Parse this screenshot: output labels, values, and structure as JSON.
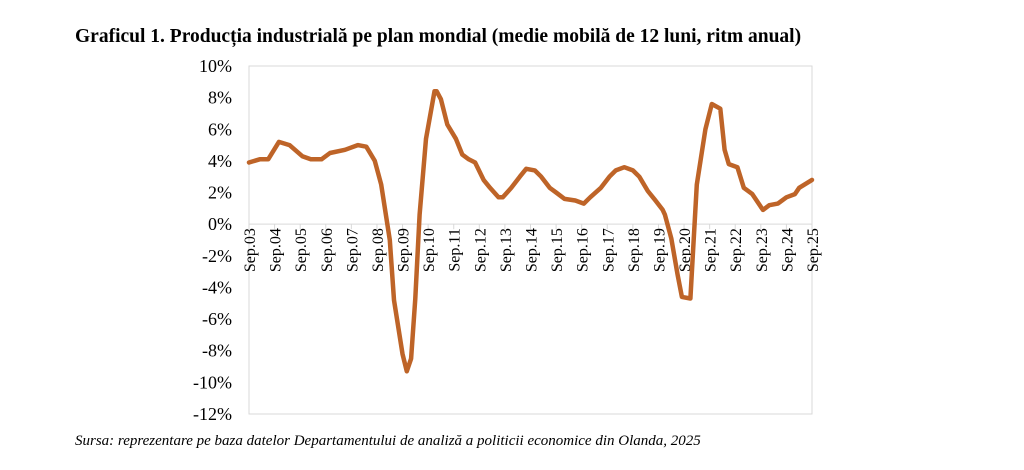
{
  "chart_data": {
    "type": "line",
    "title": "Graficul 1. Producția industrială pe plan mondial (medie mobilă de 12 luni, ritm anual)",
    "source": "Sursa: reprezentare pe baza datelor Departamentului de analiză a politicii economice din Olanda, 2025",
    "xlabel": "",
    "ylabel": "",
    "ylim": [
      -12,
      10
    ],
    "yticks": [
      "10%",
      "8%",
      "6%",
      "4%",
      "2%",
      "0%",
      "-2%",
      "-4%",
      "-6%",
      "-8%",
      "-10%",
      "-12%"
    ],
    "xticks": [
      "Sep.03",
      "Sep.04",
      "Sep.05",
      "Sep.06",
      "Sep.07",
      "Sep.08",
      "Sep.09",
      "Sep.10",
      "Sep.11",
      "Sep.12",
      "Sep.13",
      "Sep.14",
      "Sep.15",
      "Sep.16",
      "Sep.17",
      "Sep.18",
      "Sep.19",
      "Sep.20",
      "Sep.21",
      "Sep.22",
      "Sep.23",
      "Sep.24",
      "Sep.25"
    ],
    "xlim": [
      "2003-09",
      "2025-09"
    ],
    "grid": false,
    "legend": "none",
    "line_color": "#BE6428",
    "series": [
      {
        "points": [
          [
            "2003-09",
            3.9
          ],
          [
            "2004-02",
            4.1
          ],
          [
            "2004-06",
            4.1
          ],
          [
            "2004-11",
            5.2
          ],
          [
            "2005-04",
            5.0
          ],
          [
            "2005-10",
            4.3
          ],
          [
            "2006-02",
            4.1
          ],
          [
            "2006-07",
            4.1
          ],
          [
            "2006-11",
            4.5
          ],
          [
            "2007-06",
            4.7
          ],
          [
            "2007-12",
            5.0
          ],
          [
            "2008-04",
            4.9
          ],
          [
            "2008-08",
            4.0
          ],
          [
            "2008-11",
            2.5
          ],
          [
            "2009-03",
            -1.0
          ],
          [
            "2009-05",
            -4.8
          ],
          [
            "2009-09",
            -8.2
          ],
          [
            "2009-11",
            -9.3
          ],
          [
            "2010-01",
            -8.5
          ],
          [
            "2010-03",
            -4.7
          ],
          [
            "2010-05",
            0.6
          ],
          [
            "2010-08",
            5.4
          ],
          [
            "2010-12",
            8.4
          ],
          [
            "2011-01",
            8.4
          ],
          [
            "2011-03",
            7.9
          ],
          [
            "2011-06",
            6.3
          ],
          [
            "2011-10",
            5.4
          ],
          [
            "2012-01",
            4.4
          ],
          [
            "2012-04",
            4.1
          ],
          [
            "2012-07",
            3.9
          ],
          [
            "2012-11",
            2.8
          ],
          [
            "2013-02",
            2.3
          ],
          [
            "2013-06",
            1.7
          ],
          [
            "2013-08",
            1.7
          ],
          [
            "2013-12",
            2.3
          ],
          [
            "2014-04",
            3.0
          ],
          [
            "2014-07",
            3.5
          ],
          [
            "2014-11",
            3.4
          ],
          [
            "2015-02",
            3.0
          ],
          [
            "2015-06",
            2.3
          ],
          [
            "2015-09",
            2.0
          ],
          [
            "2016-01",
            1.6
          ],
          [
            "2016-06",
            1.5
          ],
          [
            "2016-10",
            1.3
          ],
          [
            "2017-01",
            1.7
          ],
          [
            "2017-06",
            2.3
          ],
          [
            "2017-10",
            3.0
          ],
          [
            "2018-01",
            3.4
          ],
          [
            "2018-05",
            3.6
          ],
          [
            "2018-09",
            3.4
          ],
          [
            "2018-12",
            3.0
          ],
          [
            "2019-04",
            2.1
          ],
          [
            "2019-07",
            1.6
          ],
          [
            "2019-11",
            0.9
          ],
          [
            "2019-12",
            0.6
          ],
          [
            "2020-03",
            -0.9
          ],
          [
            "2020-06",
            -3.2
          ],
          [
            "2020-08",
            -4.6
          ],
          [
            "2020-12",
            -4.7
          ],
          [
            "2021-01",
            -2.2
          ],
          [
            "2021-03",
            2.5
          ],
          [
            "2021-07",
            6.0
          ],
          [
            "2021-10",
            7.6
          ],
          [
            "2022-02",
            7.3
          ],
          [
            "2022-04",
            4.7
          ],
          [
            "2022-06",
            3.8
          ],
          [
            "2022-10",
            3.6
          ],
          [
            "2023-01",
            2.3
          ],
          [
            "2023-05",
            1.9
          ],
          [
            "2023-09",
            1.1
          ],
          [
            "2023-10",
            0.9
          ],
          [
            "2024-01",
            1.2
          ],
          [
            "2024-05",
            1.3
          ],
          [
            "2024-09",
            1.7
          ],
          [
            "2025-01",
            1.9
          ],
          [
            "2025-03",
            2.3
          ],
          [
            "2025-09",
            2.8
          ]
        ]
      }
    ]
  }
}
